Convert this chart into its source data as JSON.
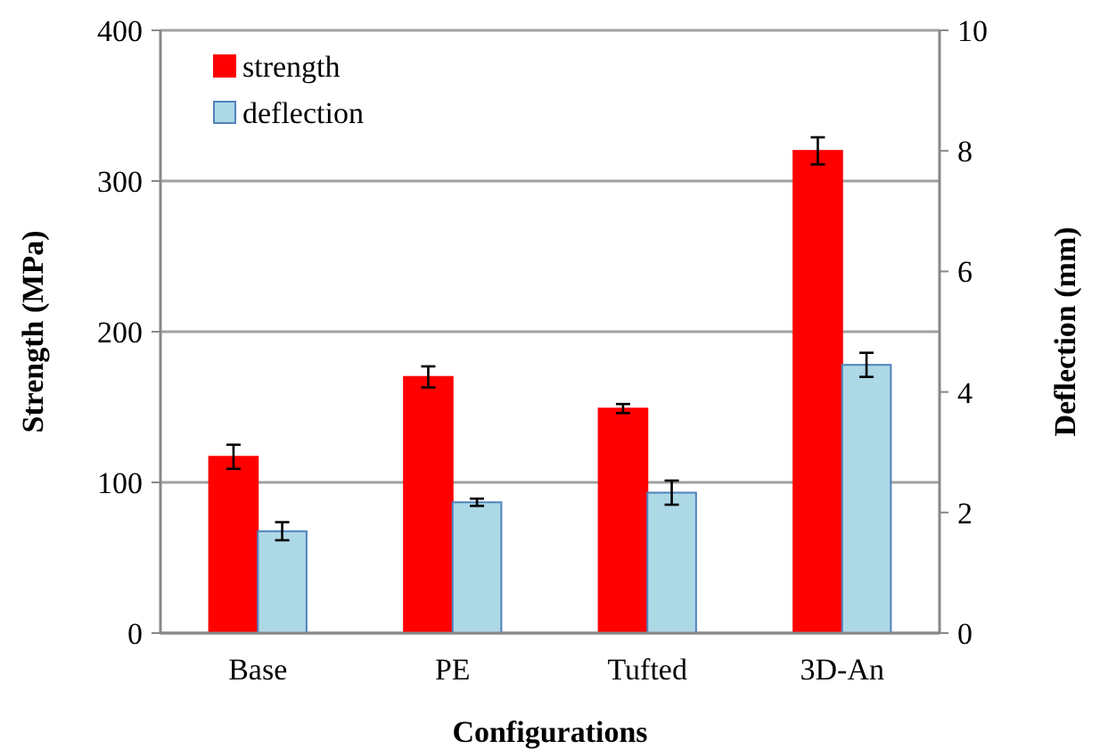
{
  "chart_data": {
    "type": "bar",
    "xlabel": "Configurations",
    "ylabel": "Strength (MPa)",
    "y2label": "Deflection (mm)",
    "categories": [
      "Base",
      "PE",
      "Tufted",
      "3D-An"
    ],
    "series": [
      {
        "name": "strength",
        "color": "#ff0000",
        "values": [
          117,
          170,
          149,
          320
        ],
        "errors": [
          8,
          7,
          3,
          9
        ]
      },
      {
        "name": "deflection",
        "color": "#add8e6",
        "axis": "y2",
        "values": [
          1.69,
          2.17,
          2.33,
          4.45
        ],
        "errors": [
          0.15,
          0.06,
          0.2,
          0.2
        ]
      }
    ],
    "ylim": [
      0,
      400
    ],
    "yticks": [
      0,
      100,
      200,
      300,
      400
    ],
    "y2lim": [
      0,
      10
    ],
    "y2ticks": [
      0,
      2,
      4,
      6,
      8,
      10
    ],
    "grid": "y",
    "legend": "top left"
  }
}
